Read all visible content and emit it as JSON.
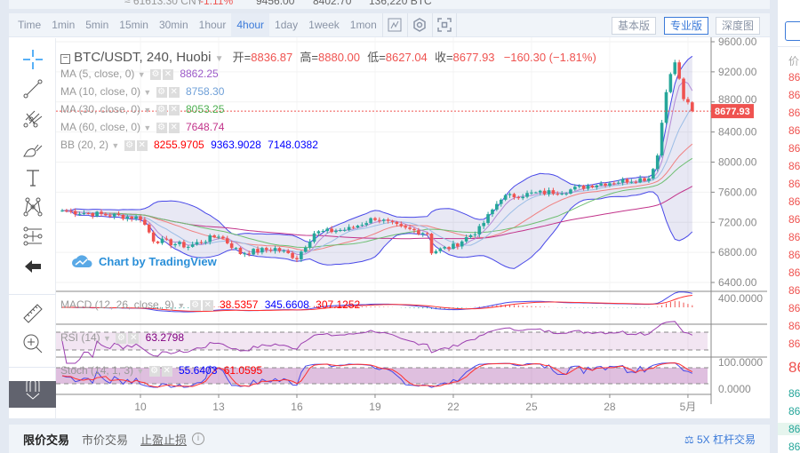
{
  "ticker": {
    "cny": "≈ 61613.30 CNY",
    "change": "-1.11%",
    "high": "9456.00",
    "low": "8402.70",
    "volume": "136,220 BTC"
  },
  "toolbar": {
    "timeframes": [
      "Time",
      "1min",
      "5min",
      "15min",
      "30min",
      "1hour",
      "4hour",
      "1day",
      "1week",
      "1mon"
    ],
    "active": "4hour",
    "icons": [
      "chart-type-icon",
      "indicator-icon",
      "fullscreen-icon"
    ],
    "versions": [
      "基本版",
      "专业版",
      "深度图"
    ],
    "active_version": "专业版"
  },
  "tools": [
    "crosshair-icon",
    "trend-line-icon",
    "pitchfork-icon",
    "brush-icon",
    "text-icon",
    "pattern-icon",
    "measure-lines-icon",
    "back-arrow-icon",
    "ruler-icon",
    "zoom-in-icon",
    "magnet-icon"
  ],
  "header": {
    "symbol": "BTC/USDT, 240, Huobi",
    "open_label": "开=",
    "open": "8836.87",
    "high_label": "高=",
    "high": "8880.00",
    "low_label": "低=",
    "low": "8627.04",
    "close_label": "收=",
    "close": "8677.93",
    "change": "−160.30 (−1.81%)"
  },
  "indicators": [
    {
      "label": "MA (5, close, 0)",
      "values": [
        "8862.25"
      ],
      "colors": [
        "#9c5bc9"
      ]
    },
    {
      "label": "MA (10, close, 0)",
      "values": [
        "8758.30"
      ],
      "colors": [
        "#6fa0d8"
      ]
    },
    {
      "label": "MA (30, close, 0)",
      "values": [
        "8053.25"
      ],
      "colors": [
        "#4caf50"
      ]
    },
    {
      "label": "MA (60, close, 0)",
      "values": [
        "7648.74"
      ],
      "colors": [
        "#c2338a"
      ]
    },
    {
      "label": "BB (20, 2)",
      "values": [
        "8255.9705",
        "9363.9028",
        "7148.0382"
      ],
      "colors": [
        "#ff0000",
        "#0000ff",
        "#0000ff"
      ]
    }
  ],
  "macd": {
    "label": "MACD (12, 26, close, 9)",
    "values": [
      "38.5357",
      "345.6608",
      "307.1252"
    ],
    "colors": [
      "#ff0000",
      "#0000ff",
      "#ff0000"
    ]
  },
  "rsi": {
    "label": "RSI (14)",
    "values": [
      "63.2798"
    ],
    "colors": [
      "#800080"
    ]
  },
  "stoch": {
    "label": "Stoch (14, 1, 3)",
    "values": [
      "55.6403",
      "61.0595"
    ],
    "colors": [
      "#0000ff",
      "#ff0000"
    ]
  },
  "watermark": "Chart by TradingView",
  "price_axis": {
    "ticks": [
      "9600.00",
      "9200.00",
      "8800.00",
      "8400.00",
      "8000.00",
      "7600.00",
      "7200.00",
      "6800.00",
      "6400.00"
    ],
    "current": "8677.93",
    "macd_tick": "400.0000",
    "stoch_ticks": [
      "100.0000",
      "0.0000"
    ]
  },
  "date_axis": [
    "10",
    "13",
    "16",
    "19",
    "22",
    "25",
    "28",
    "5月"
  ],
  "chart_data": {
    "type": "candlestick",
    "interval": "4h",
    "ylim": [
      6400,
      9600
    ],
    "approx_close": [
      [
        "04-07",
        7356
      ],
      [
        "04-08",
        7320
      ],
      [
        "04-10",
        7260
      ],
      [
        "04-10 12:00",
        6970
      ],
      [
        "04-11 20:00",
        6880
      ],
      [
        "04-13",
        7030
      ],
      [
        "04-13 20:00",
        6790
      ],
      [
        "04-15 04:00",
        6850
      ],
      [
        "04-16",
        6730
      ],
      [
        "04-16 16:00",
        7060
      ],
      [
        "04-18",
        7110
      ],
      [
        "04-19",
        7260
      ],
      [
        "04-20",
        7120
      ],
      [
        "04-21",
        7060
      ],
      [
        "04-21 04:00",
        6810
      ],
      [
        "04-22",
        6880
      ],
      [
        "04-23",
        7110
      ],
      [
        "04-23 20:00",
        7530
      ],
      [
        "04-25",
        7580
      ],
      [
        "04-26 08:00",
        7620
      ],
      [
        "04-27 08:00",
        7700
      ],
      [
        "04-28",
        7730
      ],
      [
        "04-29 12:00",
        7790
      ],
      [
        "04-29 20:00",
        8090
      ],
      [
        "04-30 04:00",
        8970
      ],
      [
        "04-30 12:00",
        9330
      ],
      [
        "04-30 20:00",
        8850
      ],
      [
        "05-01",
        8760
      ],
      [
        "05-01 04:00",
        8677.93
      ]
    ],
    "up_color": "#26a69a",
    "down_color": "#ef5350"
  },
  "bottom": {
    "tabs": [
      "限价交易",
      "市价交易",
      "止盈止损"
    ],
    "active": "限价交易",
    "leverage": "5X 杠杆交易"
  },
  "orderbook": {
    "header": "价",
    "asks": [
      "86",
      "86",
      "86",
      "86",
      "86",
      "86",
      "86",
      "86",
      "86",
      "86",
      "86",
      "86",
      "86",
      "86",
      "86",
      "86"
    ],
    "mid": "86",
    "bids": [
      "86",
      "86",
      "86",
      "86"
    ]
  }
}
